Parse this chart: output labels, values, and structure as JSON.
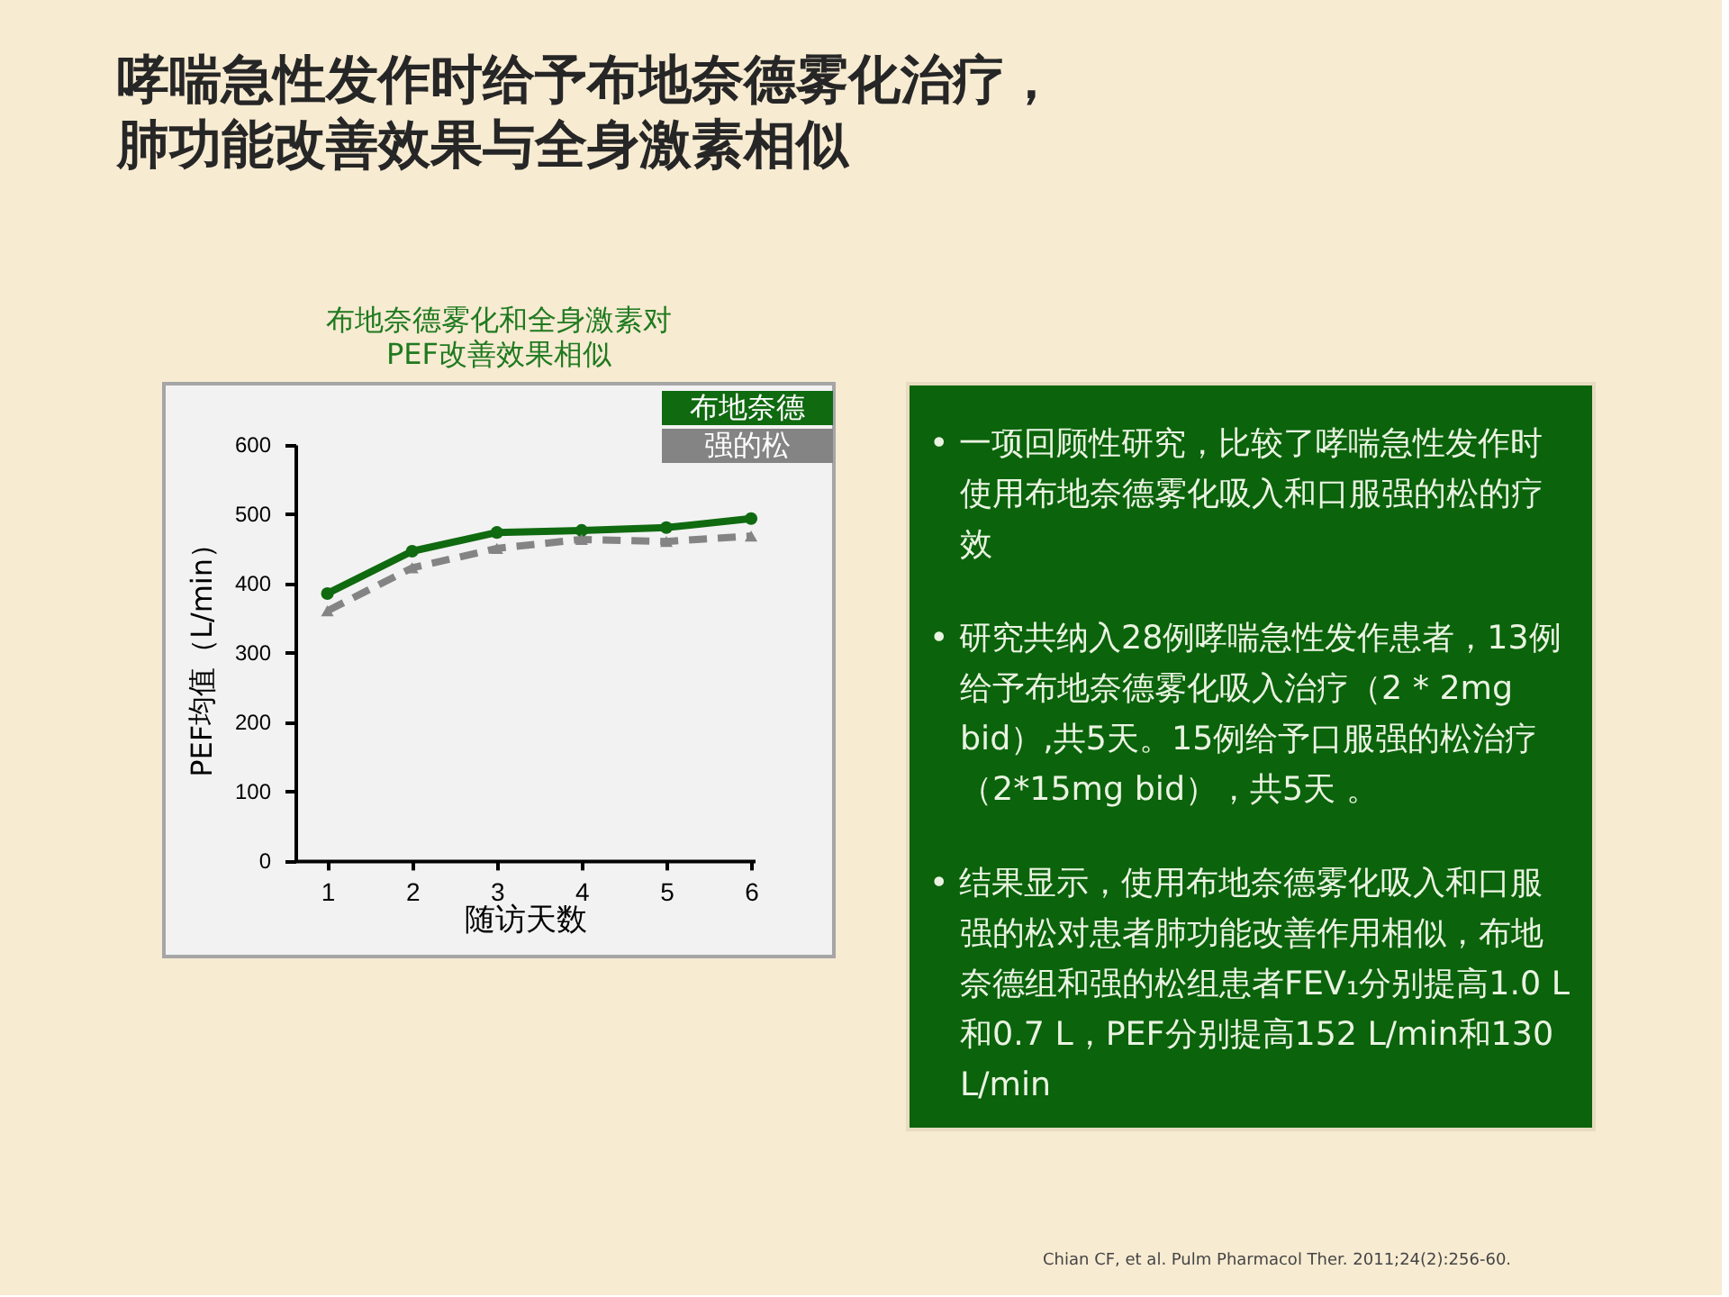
{
  "chart_data": [
    {
      "type": "line",
      "title": "哮喘急性发作时给予布地奈德雾化治疗，肺功能改善效果与全身激素相似",
      "subtitle": "布地奈德雾化和全身激素对PEF改善效果相似",
      "xlabel": "随访天数",
      "ylabel": "PEF均值（L/min）",
      "categories": [
        "1",
        "2",
        "3",
        "4",
        "5",
        "6"
      ],
      "series": [
        {
          "name": "布地奈德",
          "color": "#106a10",
          "values": [
            385,
            446,
            473,
            476,
            480,
            493
          ],
          "marker": "circle",
          "line_style": "solid"
        },
        {
          "name": "强的松",
          "color": "#848484",
          "values": [
            360,
            422,
            450,
            463,
            460,
            468
          ],
          "marker": "triangle",
          "line_style": "dashed"
        }
      ],
      "ylim": [
        0,
        600
      ],
      "yticks": [
        0,
        100,
        200,
        300,
        400,
        500,
        600
      ],
      "legend": "top right"
    },
    {
      "type": "other",
      "annotations": [
        "• 一项回顾性研究，比较了哮喘急性发作时使用布地奈德雾化吸入和口服强的松的疗效",
        "• 研究共纳入28例哮喘急性发作患者，13例给予布地奈德雾化吸入治疗（2 * 2mg bid）,共5天。15例给予口服强的松治疗（2*15mg bid），共5天 。",
        "• 结果显示，使用布地奈德雾化吸入和口服强的松对患者肺功能改善作用相似，布地奈德组和强的松组患者FEV₁分别提高1.0 L和0.7 L，PEF分别提高152 L/min和130 L/min",
        "Chian CF, et al. Pulm Pharmacol Ther. 2011;24(2):256-60."
      ]
    }
  ]
}
